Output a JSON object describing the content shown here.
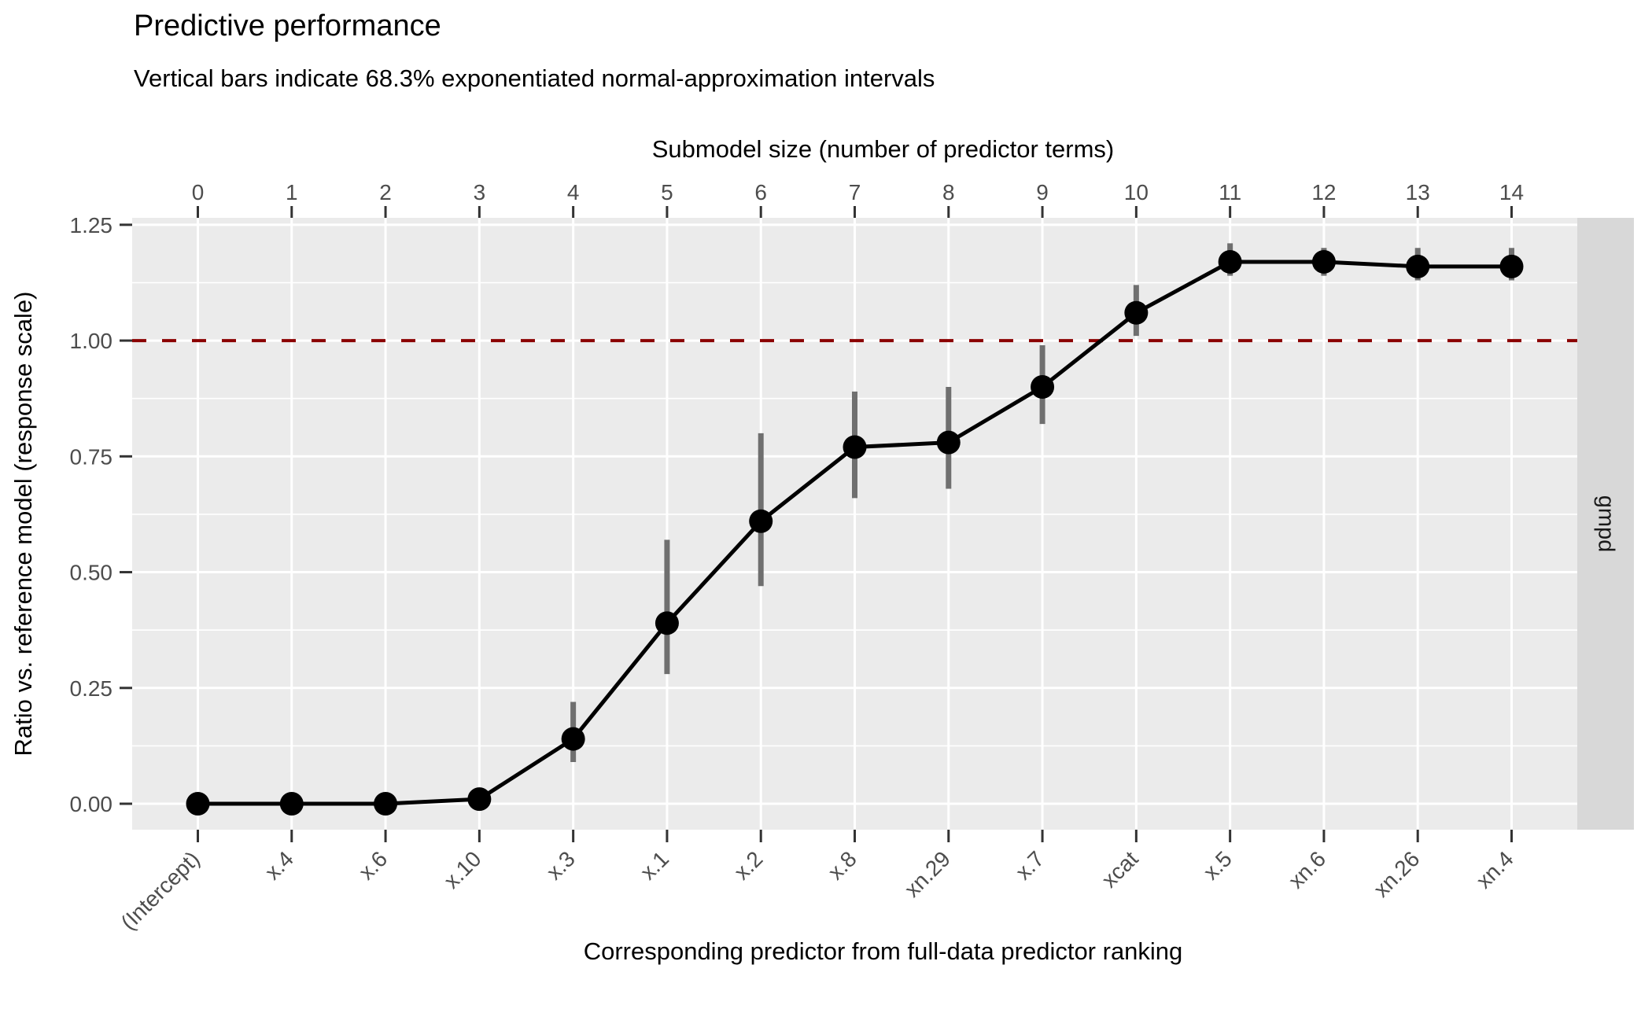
{
  "title": "Predictive performance",
  "subtitle": "Vertical bars indicate 68.3% exponentiated normal-approximation intervals",
  "axes": {
    "top": {
      "title": "Submodel size (number of predictor terms)"
    },
    "bottom": {
      "title": "Corresponding predictor from full-data predictor ranking"
    },
    "left": {
      "title": "Ratio vs. reference model (response scale)"
    }
  },
  "facet_strip": {
    "label": "gmpd"
  },
  "colors": {
    "panel_background": "#EBEBEB",
    "strip_background": "#D8D8D8",
    "grid": "#FFFFFF",
    "tick_mark": "#333333",
    "tick_label": "#4D4D4D",
    "point": "#000000",
    "line": "#000000",
    "error_bar": "#6F6F6F",
    "reference_line": "#8B0000"
  },
  "chart_data": {
    "type": "line",
    "title": "Predictive performance",
    "subtitle": "Vertical bars indicate 68.3% exponentiated normal-approximation intervals",
    "xlabel_top": "Submodel size (number of predictor terms)",
    "xlabel_bottom": "Corresponding predictor from full-data predictor ranking",
    "ylabel": "Ratio vs. reference model (response scale)",
    "facet_label": "gmpd",
    "x_top": [
      "0",
      "1",
      "2",
      "3",
      "4",
      "5",
      "6",
      "7",
      "8",
      "9",
      "10",
      "11",
      "12",
      "13",
      "14"
    ],
    "categories": [
      "(Intercept)",
      "x.4",
      "x.6",
      "x.10",
      "x.3",
      "x.1",
      "x.2",
      "x.8",
      "xn.29",
      "x.7",
      "xcat",
      "x.5",
      "xn.6",
      "xn.26",
      "xn.4"
    ],
    "series": [
      {
        "name": "gmpd",
        "values": [
          0.0,
          0.0,
          0.0,
          0.01,
          0.14,
          0.39,
          0.61,
          0.77,
          0.78,
          0.9,
          1.06,
          1.17,
          1.17,
          1.16,
          1.16
        ],
        "ci_lower": [
          0.0,
          0.0,
          0.0,
          0.01,
          0.09,
          0.28,
          0.47,
          0.66,
          0.68,
          0.82,
          1.01,
          1.14,
          1.14,
          1.13,
          1.13
        ],
        "ci_upper": [
          0.0,
          0.0,
          0.0,
          0.01,
          0.22,
          0.57,
          0.8,
          0.89,
          0.9,
          0.99,
          1.12,
          1.21,
          1.2,
          1.2,
          1.2
        ]
      }
    ],
    "interval_level": "68.3%",
    "yticks": [
      0,
      0.25,
      0.5,
      0.75,
      1.0,
      1.25
    ],
    "ytick_labels": [
      "0.00",
      "0.25",
      "0.50",
      "0.75",
      "1.00",
      "1.25"
    ],
    "ylim": [
      -0.056,
      1.265
    ],
    "reference_line_y": 1.0,
    "grid": "major-and-minor",
    "legend_position": "none"
  }
}
